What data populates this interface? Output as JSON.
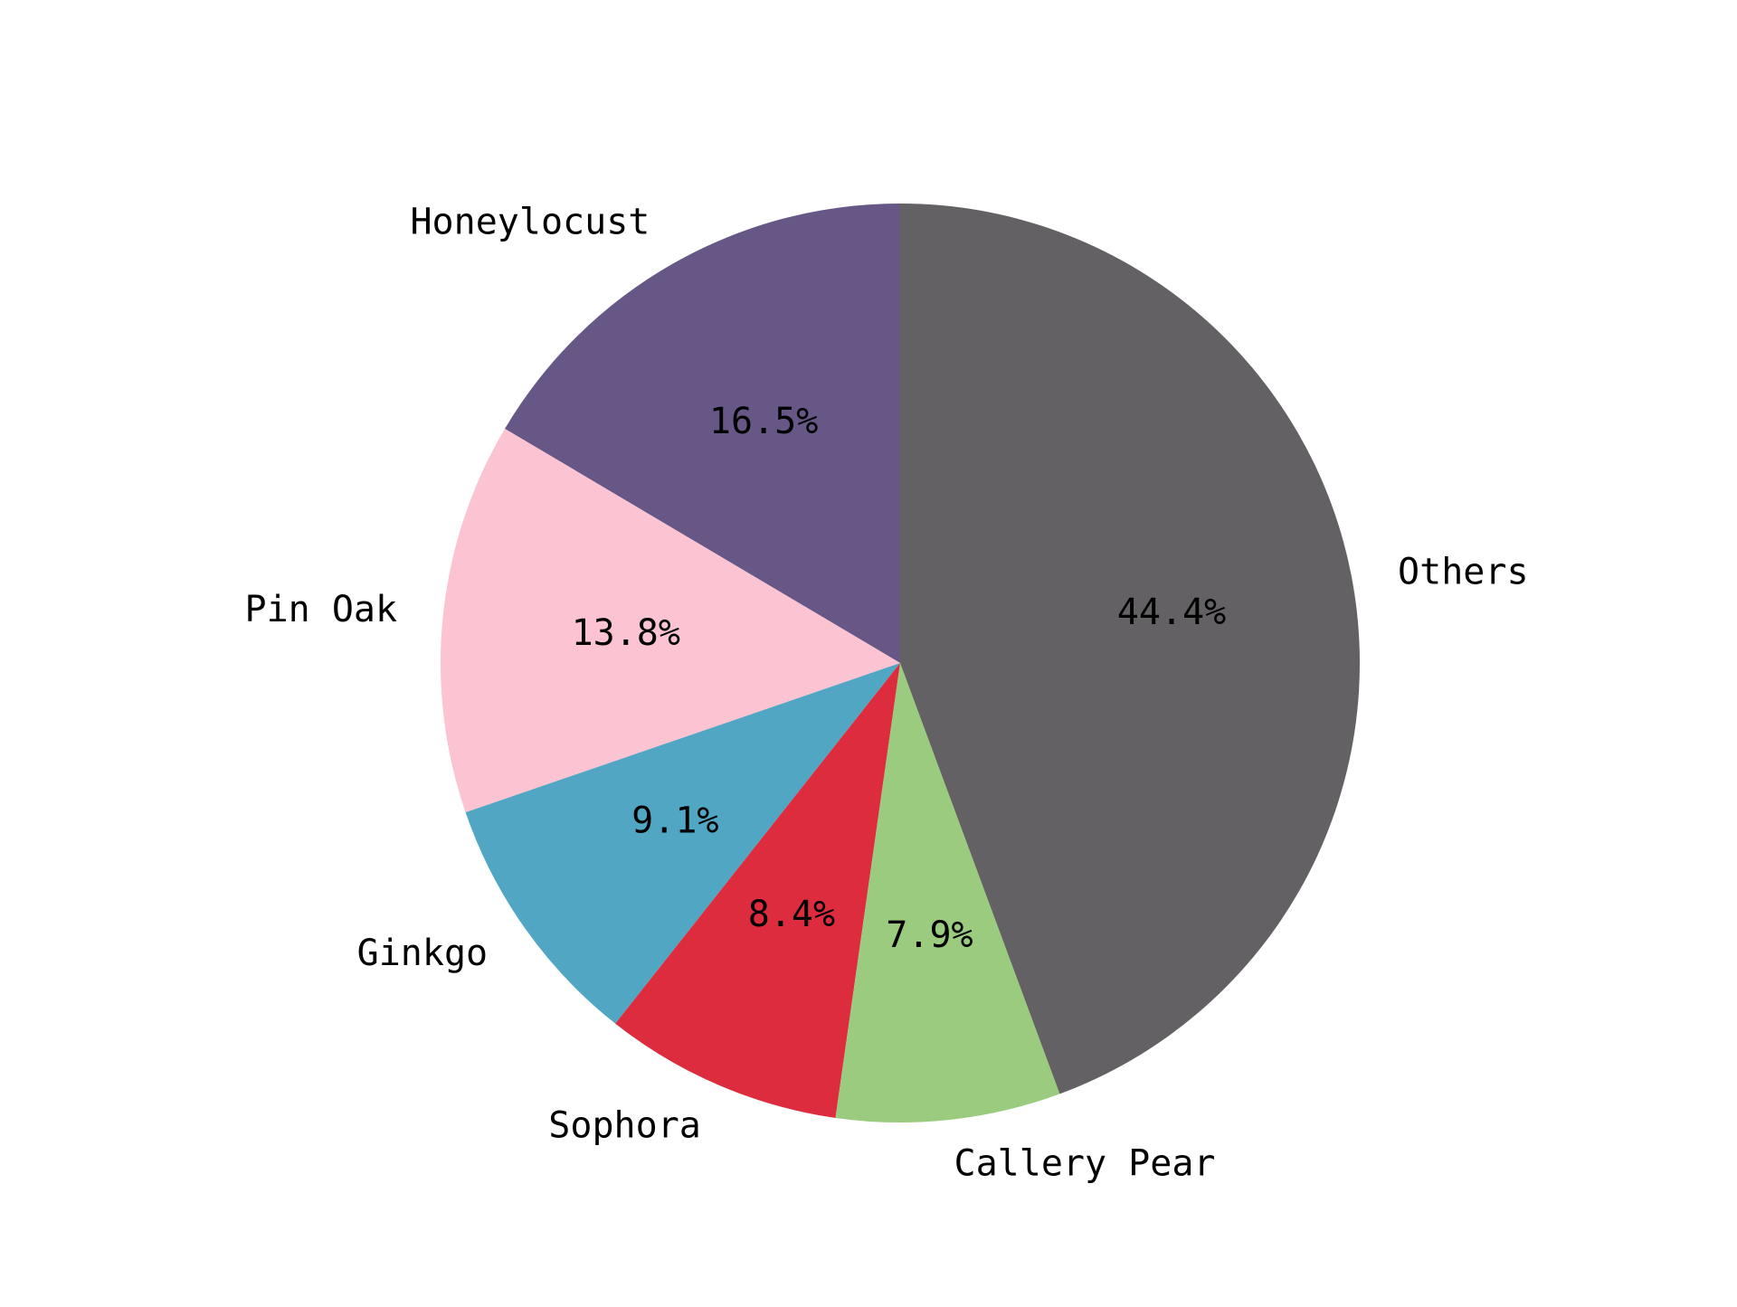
{
  "chart_data": {
    "type": "pie",
    "title": "",
    "start": "top",
    "direction": "counterclockwise",
    "slices": [
      {
        "label": "Honeylocust",
        "value": 16.5,
        "pct_label": "16.5%",
        "color": "#665786"
      },
      {
        "label": "Pin Oak",
        "value": 13.8,
        "pct_label": "13.8%",
        "color": "#fcc3d2"
      },
      {
        "label": "Ginkgo",
        "value": 9.1,
        "pct_label": "9.1%",
        "color": "#51a7c3"
      },
      {
        "label": "Sophora",
        "value": 8.4,
        "pct_label": "8.4%",
        "color": "#dc2c3e"
      },
      {
        "label": "Callery Pear",
        "value": 7.9,
        "pct_label": "7.9%",
        "color": "#9bcb7e"
      },
      {
        "label": "Others",
        "value": 44.4,
        "pct_label": "44.4%",
        "color": "#636164"
      }
    ]
  }
}
